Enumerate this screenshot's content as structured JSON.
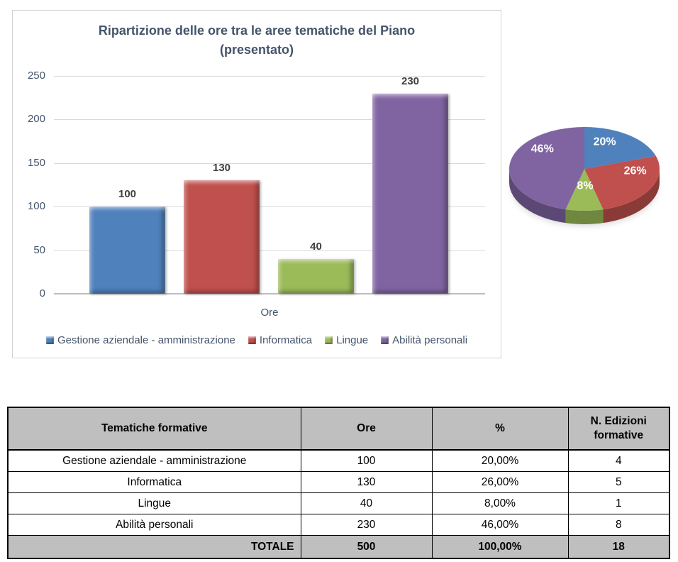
{
  "title": {
    "line1": "Ripartizione delle ore tra le aree tematiche del Piano",
    "line2": "(presentato)"
  },
  "colors": {
    "series": [
      "#4F81BD",
      "#C0504D",
      "#9BBB59",
      "#8064A2"
    ],
    "title_text": "#44546A",
    "axis_text": "#44546A",
    "grid_line": "#D9D9D9",
    "pie_label_text": "#FFFFFF",
    "table_header_bg": "#BFBFBF",
    "table_border": "#000000"
  },
  "chart_data": [
    {
      "type": "bar",
      "title": "Ripartizione delle ore tra le aree tematiche del Piano (presentato)",
      "categories": [
        "Gestione aziendale - amministrazione",
        "Informatica",
        "Lingue",
        "Abilità personali"
      ],
      "series": [
        {
          "name": "Ore",
          "values": [
            100,
            130,
            40,
            230
          ]
        }
      ],
      "data_labels": [
        "100",
        "130",
        "40",
        "230"
      ],
      "xlabel": "Ore",
      "ylabel": "",
      "ylim": [
        0,
        250
      ],
      "yticks": [
        0,
        50,
        100,
        150,
        200,
        250
      ],
      "grid": true,
      "legend": [
        "Gestione aziendale - amministrazione",
        "Informatica",
        "Lingue",
        "Abilità personali"
      ],
      "legend_position": "bottom",
      "effect": "3d-bevel"
    },
    {
      "type": "pie",
      "labels": [
        "Gestione aziendale - amministrazione",
        "Informatica",
        "Lingue",
        "Abilità personali"
      ],
      "values": [
        20,
        26,
        8,
        46
      ],
      "slice_labels": [
        "20%",
        "26%",
        "8%",
        "46%"
      ],
      "unit": "percent",
      "effect": "3d",
      "legend_position": "none"
    }
  ],
  "table": {
    "headers": [
      "Tematiche formative",
      "Ore",
      "%",
      "N. Edizioni formative"
    ],
    "rows": [
      [
        "Gestione aziendale - amministrazione",
        "100",
        "20,00%",
        "4"
      ],
      [
        "Informatica",
        "130",
        "26,00%",
        "5"
      ],
      [
        "Lingue",
        "40",
        "8,00%",
        "1"
      ],
      [
        "Abilità personali",
        "230",
        "46,00%",
        "8"
      ]
    ],
    "total_row": [
      "TOTALE",
      "500",
      "100,00%",
      "18"
    ]
  }
}
